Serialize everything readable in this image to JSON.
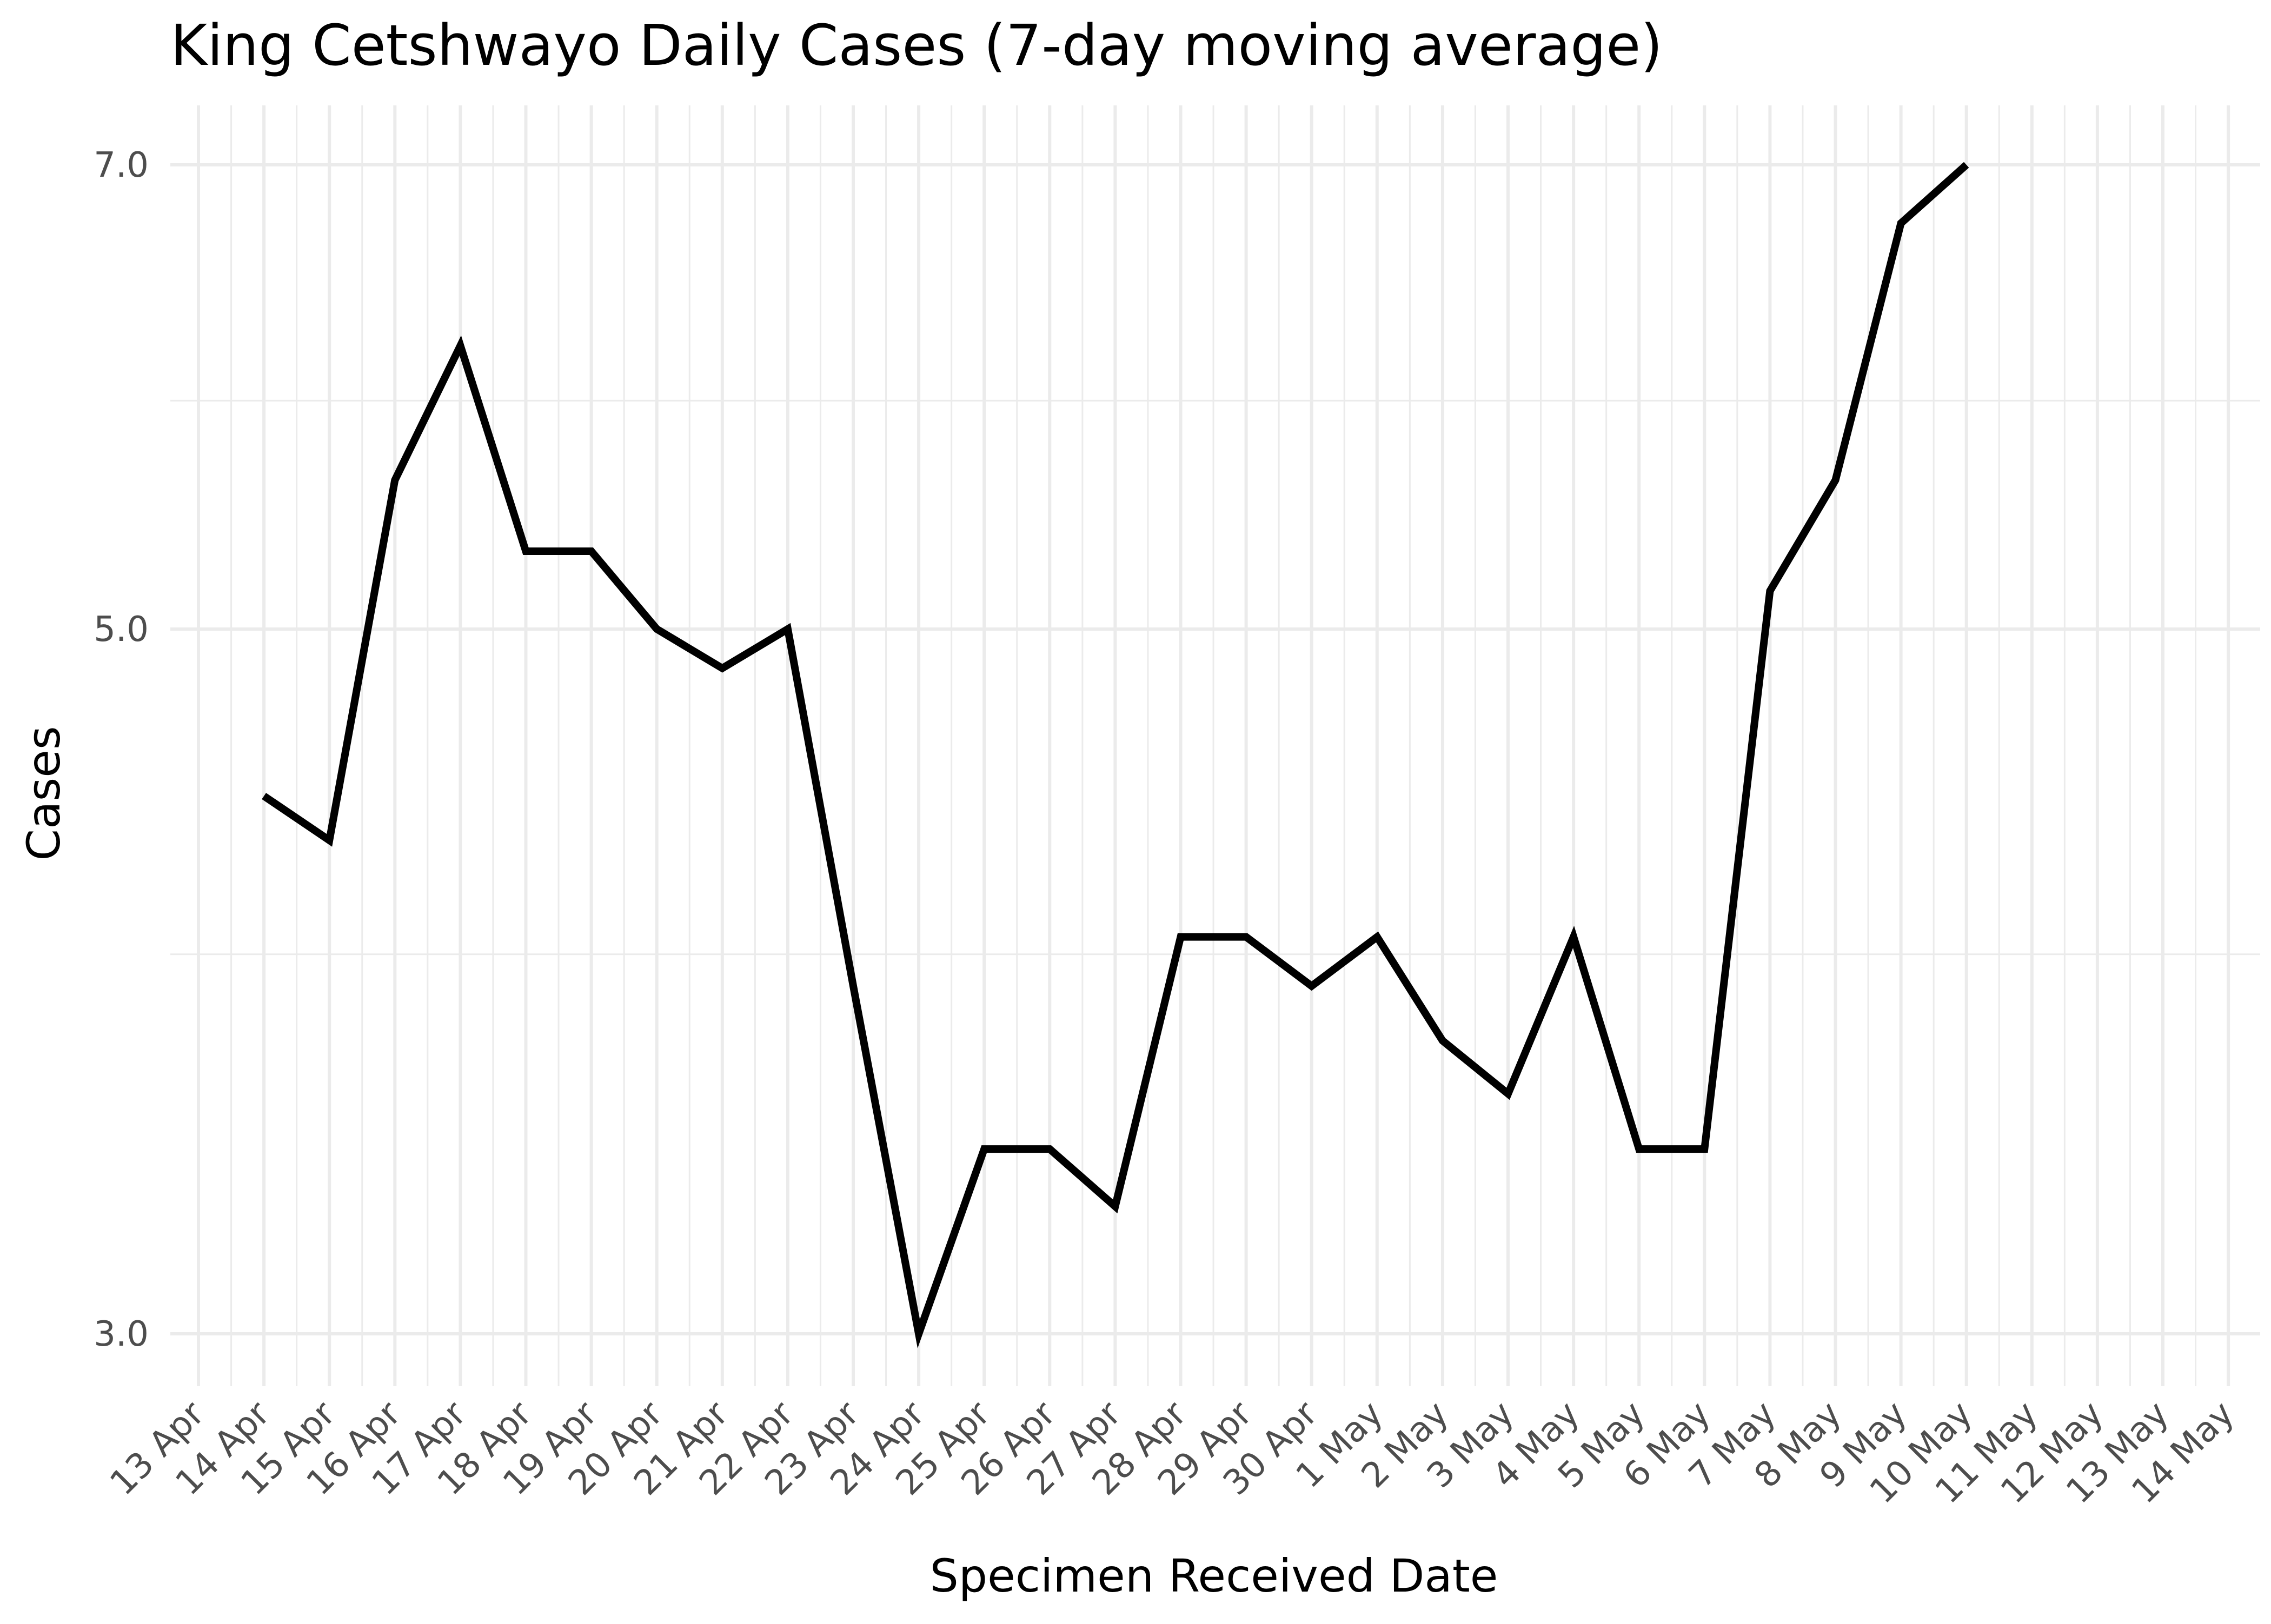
{
  "chart_data": {
    "type": "line",
    "title": "King Cetshwayo Daily Cases (7-day moving average)",
    "xlabel": "Specimen Received Date",
    "ylabel": "Cases",
    "y_scale": "log",
    "ylim": [
      2.9,
      7.2
    ],
    "y_ticks": [
      3.0,
      5.0,
      7.0
    ],
    "y_tick_labels": [
      "3.0",
      "5.0",
      "7.0"
    ],
    "y_minor_ticks": [
      3.95,
      5.9
    ],
    "grid": true,
    "categories": [
      "13 Apr",
      "14 Apr",
      "15 Apr",
      "16 Apr",
      "17 Apr",
      "18 Apr",
      "19 Apr",
      "20 Apr",
      "21 Apr",
      "22 Apr",
      "23 Apr",
      "24 Apr",
      "25 Apr",
      "26 Apr",
      "27 Apr",
      "28 Apr",
      "29 Apr",
      "30 Apr",
      "1 May",
      "2 May",
      "3 May",
      "4 May",
      "5 May",
      "6 May",
      "7 May",
      "8 May",
      "9 May",
      "10 May",
      "11 May",
      "12 May",
      "13 May",
      "14 May"
    ],
    "series": [
      {
        "color": "#000000",
        "values": [
          null,
          4.43,
          4.29,
          5.57,
          6.14,
          5.29,
          5.29,
          5.0,
          4.86,
          5.0,
          3.86,
          3.0,
          3.43,
          3.43,
          3.29,
          4.0,
          4.0,
          3.86,
          4.0,
          3.71,
          3.57,
          4.0,
          3.43,
          3.43,
          5.14,
          5.57,
          6.71,
          7.0,
          null,
          null,
          null,
          null
        ]
      }
    ]
  }
}
